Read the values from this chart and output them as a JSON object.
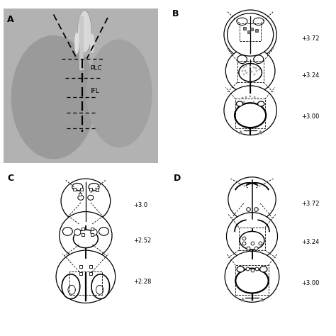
{
  "background_color": "#ffffff",
  "fig_width": 4.74,
  "fig_height": 4.74,
  "panel_A": {
    "label": "A",
    "bg_color": "#b0b0b0",
    "PLC_label": "PLC",
    "IFL_label": "IFL"
  },
  "panel_B": {
    "label": "B",
    "coords": [
      "+3.72",
      "+3.24",
      "+3.00"
    ]
  },
  "panel_C": {
    "label": "C",
    "coords": [
      "+3.0",
      "+2.52",
      "+2.28"
    ]
  },
  "panel_D": {
    "label": "D",
    "coords": [
      "+3.72",
      "+3.24",
      "+3.00"
    ]
  }
}
